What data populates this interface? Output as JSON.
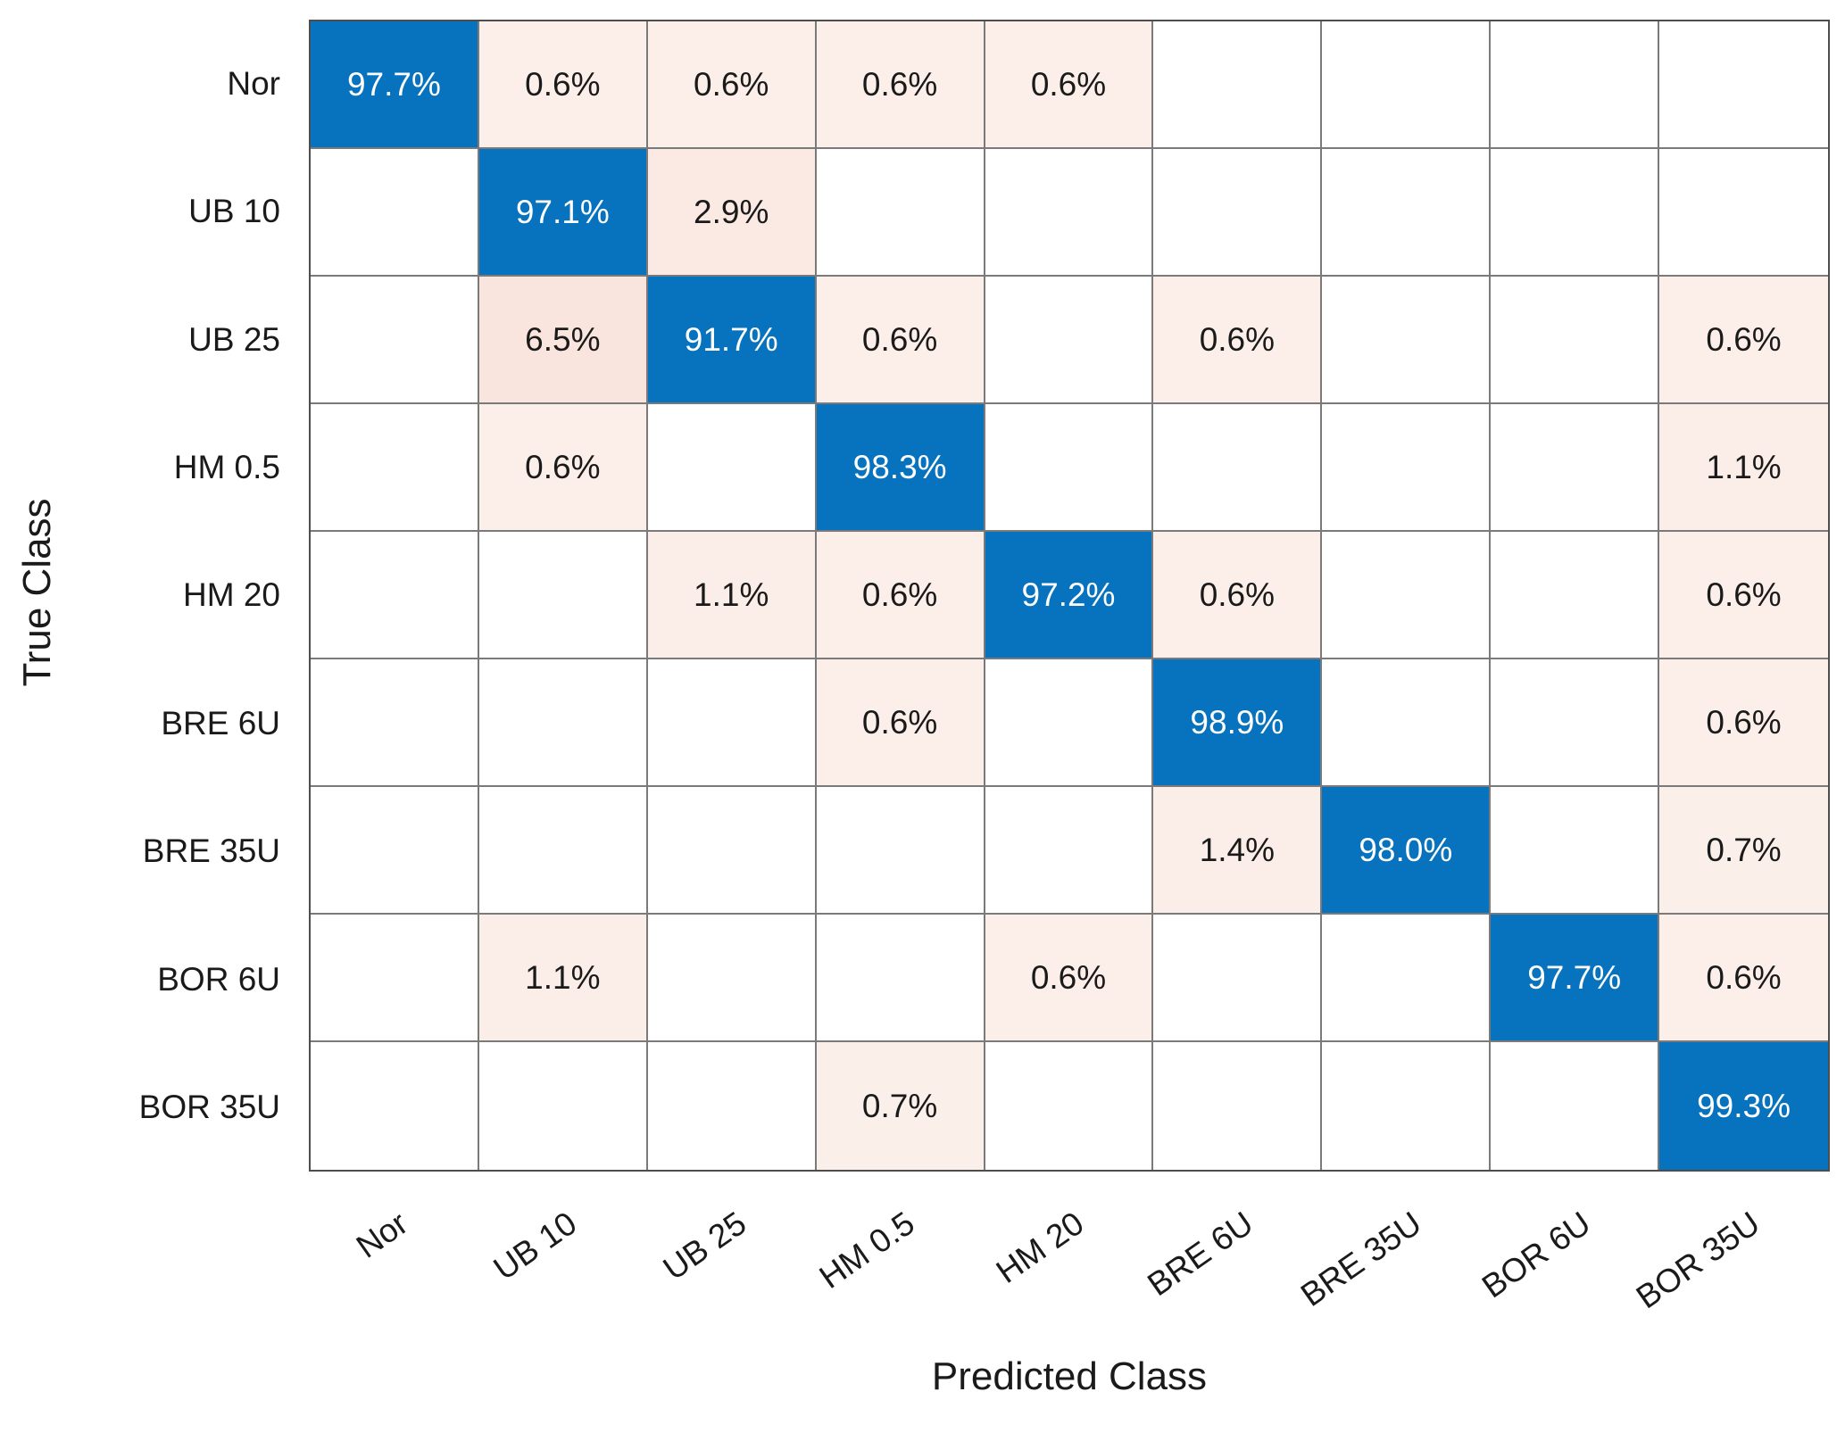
{
  "chart_data": {
    "type": "heatmap",
    "subtype": "confusion-matrix",
    "title": "",
    "xlabel": "Predicted Class",
    "ylabel": "True Class",
    "unit": "%",
    "value_decimals": 1,
    "classes": [
      "Nor",
      "UB 10",
      "UB 25",
      "HM 0.5",
      "HM 20",
      "BRE 6U",
      "BRE 35U",
      "BOR 6U",
      "BOR 35U"
    ],
    "matrix": [
      [
        97.7,
        0.6,
        0.6,
        0.6,
        0.6,
        null,
        null,
        null,
        null
      ],
      [
        null,
        97.1,
        2.9,
        null,
        null,
        null,
        null,
        null,
        null
      ],
      [
        null,
        6.5,
        91.7,
        0.6,
        null,
        0.6,
        null,
        null,
        0.6
      ],
      [
        null,
        0.6,
        null,
        98.3,
        null,
        null,
        null,
        null,
        1.1
      ],
      [
        null,
        null,
        1.1,
        0.6,
        97.2,
        0.6,
        null,
        null,
        0.6
      ],
      [
        null,
        null,
        null,
        0.6,
        null,
        98.9,
        null,
        null,
        0.6
      ],
      [
        null,
        null,
        null,
        null,
        null,
        1.4,
        98.0,
        null,
        0.7
      ],
      [
        null,
        1.1,
        null,
        null,
        0.6,
        null,
        null,
        97.7,
        0.6
      ],
      [
        null,
        null,
        null,
        0.7,
        null,
        null,
        null,
        null,
        99.3
      ]
    ],
    "layout": {
      "grid": "on",
      "legend": "none",
      "x_tick_rotation_deg": -35
    },
    "colors": {
      "diagonal": "#0772BD",
      "off_diagonal_base": "#D95319",
      "diagonal_text": "#FFFFFF",
      "cell_text": "#1A1A1A",
      "grid_line": "#7A7A7A",
      "outer_border": "#4D4D4D",
      "background": "#FFFFFF"
    }
  }
}
